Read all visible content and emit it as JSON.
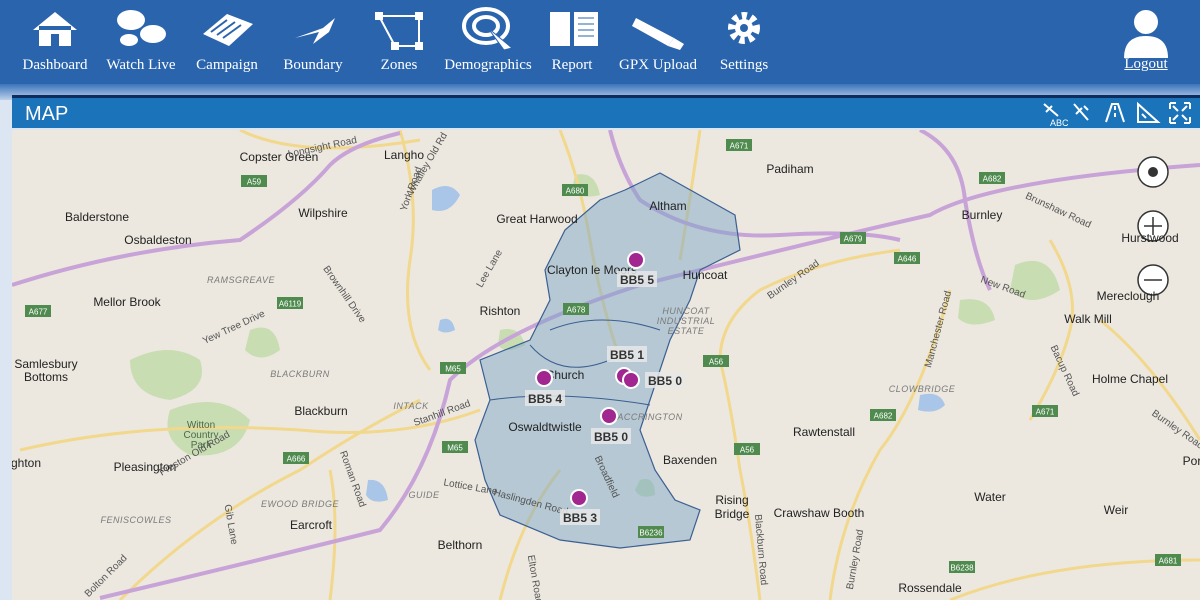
{
  "nav": {
    "items": [
      "Dashboard",
      "Watch Live",
      "Campaign",
      "Boundary",
      "Zones",
      "Demographics",
      "Report",
      "GPX Upload",
      "Settings"
    ],
    "logout": "Logout"
  },
  "panel": {
    "title": "MAP",
    "tool_label": "ABC"
  },
  "map": {
    "places": [
      "Copster Green",
      "Langho",
      "Padiham",
      "Balderstone",
      "Osbaldeston",
      "Wilpshire",
      "Great Harwood",
      "Altham",
      "Burnley",
      "Hurstwood",
      "Clayton le Moors",
      "Huncoat",
      "Mellor Brook",
      "Rishton",
      "Mereclough",
      "Walk Mill",
      "Samlesbury",
      "Bottoms",
      "Blackburn",
      "Church",
      "Oswaldtwistle",
      "Holme Chapel",
      "Rawtenstall",
      "Baxenden",
      "Pleasington",
      "Rising",
      "Bridge",
      "Crawshaw Booth",
      "Water",
      "Weir",
      "Earcroft",
      "Belthorn",
      "Rossendale",
      "ghton",
      "Por",
      "Witton",
      "Country",
      "Park"
    ],
    "districts": [
      "RAMSGREAVE",
      "BLACKBURN",
      "INTACK",
      "HUNCOAT",
      "INDUSTRIAL",
      "ESTATE",
      "CLOWBRIDGE",
      "ACCRINGTON",
      "FENISCOWLES",
      "EWOOD BRIDGE",
      "GUIDE"
    ],
    "road_names": [
      "Longsight Road",
      "Whalley Old Rd",
      "York Road",
      "Lee Lane",
      "Brownhill Drive",
      "Yew Tree Drive",
      "Stanhill Road",
      "Burnley Road",
      "Manchester Road",
      "Bacup Road",
      "Burnley Road",
      "Preston Old Road",
      "Haslingden Road",
      "Lottice Lane",
      "Roman Road",
      "Blackburn Road",
      "Burnley Road",
      "Elton Road",
      "Bolton Road",
      "New Road",
      "Brunshaw Road",
      "Gib Lane",
      "Broadfield"
    ],
    "road_numbers": [
      "A59",
      "A680",
      "A671",
      "A682",
      "A679",
      "A646",
      "A678",
      "A677",
      "A6119",
      "A666",
      "M65",
      "A56",
      "A56",
      "A682",
      "A671",
      "B6236",
      "B6238",
      "A681",
      "M65"
    ],
    "markers": [
      "BB5 5",
      "BB5 1",
      "BB5 0",
      "BB5 4",
      "BB5 0",
      "BB5 3"
    ]
  }
}
